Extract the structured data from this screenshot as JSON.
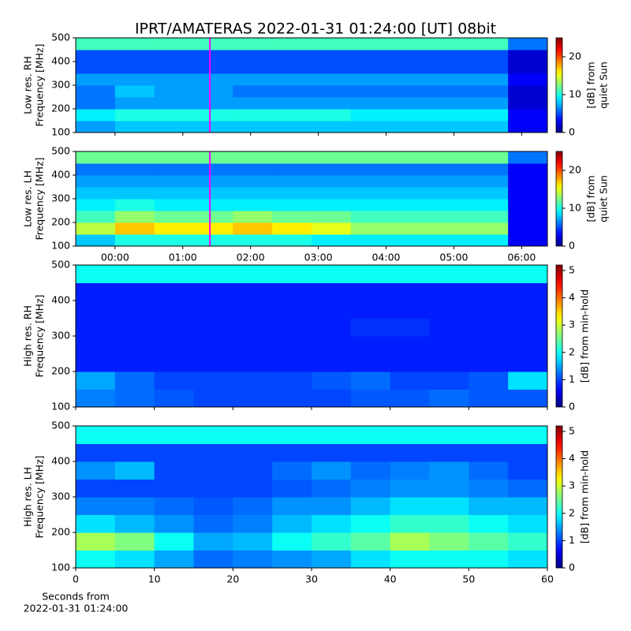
{
  "chart_data": [
    {
      "type": "heatmap",
      "title": "IPRT/AMATERAS 2022-01-31 01:24:00 [UT]   08bit",
      "ylabel": [
        "Low res. RH",
        "Frequency [MHz]"
      ],
      "xlim": [
        -0.58,
        6.38
      ],
      "xticks": [
        {
          "value": 0,
          "label": "00:00"
        },
        {
          "value": 1,
          "label": "01:00"
        },
        {
          "value": 2,
          "label": "02:00"
        },
        {
          "value": 3,
          "label": "03:00"
        },
        {
          "value": 4,
          "label": "04:00"
        },
        {
          "value": 5,
          "label": "05:00"
        },
        {
          "value": 6,
          "label": "06:00"
        }
      ],
      "show_xticklabels": false,
      "ylim": [
        100,
        500
      ],
      "yticks": [
        100,
        200,
        300,
        400,
        500
      ],
      "marker_x": 1.4,
      "marker_color": "#ff00ff",
      "colorbar": {
        "label": [
          "[dB] from",
          "quiet Sun"
        ],
        "lim": [
          0,
          25
        ],
        "ticks": [
          0,
          10,
          20
        ]
      },
      "z": [
        [
          7,
          8,
          8,
          8,
          8,
          8,
          8,
          8,
          8,
          8,
          8,
          3
        ],
        [
          9,
          10,
          10,
          10,
          10,
          10,
          10,
          9,
          9,
          9,
          9,
          3
        ],
        [
          6,
          7,
          7,
          7,
          7,
          7,
          7,
          7,
          7,
          7,
          7,
          2
        ],
        [
          6,
          8,
          7,
          7,
          6,
          6,
          6,
          6,
          6,
          6,
          6,
          2
        ],
        [
          7,
          7,
          7,
          7,
          7,
          7,
          7,
          7,
          7,
          7,
          7,
          3
        ],
        [
          5,
          5,
          5,
          5,
          5,
          5,
          5,
          5,
          5,
          5,
          5,
          2
        ],
        [
          5,
          5,
          5,
          5,
          5,
          5,
          5,
          5,
          5,
          5,
          5,
          2
        ],
        [
          11,
          11,
          11,
          11,
          11,
          11,
          11,
          11,
          11,
          11,
          11,
          6
        ]
      ]
    },
    {
      "type": "heatmap",
      "ylabel": [
        "Low res. LH",
        "Frequency [MHz]"
      ],
      "xlim": [
        -0.58,
        6.38
      ],
      "xticks": [
        {
          "value": 0,
          "label": "00:00"
        },
        {
          "value": 1,
          "label": "01:00"
        },
        {
          "value": 2,
          "label": "02:00"
        },
        {
          "value": 3,
          "label": "03:00"
        },
        {
          "value": 4,
          "label": "04:00"
        },
        {
          "value": 5,
          "label": "05:00"
        },
        {
          "value": 6,
          "label": "06:00"
        }
      ],
      "show_xticklabels": true,
      "ylim": [
        100,
        500
      ],
      "yticks": [
        100,
        200,
        300,
        400,
        500
      ],
      "marker_x": 1.4,
      "marker_color": "#ff00ff",
      "colorbar": {
        "label": [
          "[dB] from",
          "quiet Sun"
        ],
        "lim": [
          0,
          25
        ],
        "ticks": [
          0,
          10,
          20
        ]
      },
      "z": [
        [
          8,
          10,
          10,
          10,
          10,
          10,
          9,
          9,
          9,
          9,
          9,
          3
        ],
        [
          14,
          17,
          16,
          16,
          17,
          16,
          15,
          13,
          13,
          13,
          13,
          3
        ],
        [
          11,
          13,
          12,
          12,
          13,
          12,
          12,
          11,
          11,
          11,
          11,
          3
        ],
        [
          9,
          10,
          9,
          9,
          9,
          9,
          9,
          9,
          9,
          9,
          9,
          3
        ],
        [
          8,
          8,
          8,
          8,
          8,
          8,
          8,
          8,
          8,
          8,
          8,
          3
        ],
        [
          7,
          7,
          7,
          7,
          7,
          7,
          7,
          7,
          7,
          7,
          7,
          3
        ],
        [
          6,
          6,
          6,
          6,
          6,
          6,
          6,
          6,
          6,
          6,
          6,
          3
        ],
        [
          12,
          12,
          12,
          12,
          12,
          12,
          12,
          12,
          12,
          12,
          12,
          6
        ]
      ]
    },
    {
      "type": "heatmap",
      "ylabel": [
        "High res. RH",
        "Frequency [MHz]"
      ],
      "xlim": [
        0,
        60
      ],
      "xticks": [
        0,
        10,
        20,
        30,
        40,
        50,
        60
      ],
      "show_xticklabels": false,
      "ylim": [
        100,
        500
      ],
      "yticks": [
        100,
        200,
        300,
        400,
        500
      ],
      "colorbar": {
        "label": [
          "[dB] from min-hold"
        ],
        "lim": [
          0,
          5.2
        ],
        "ticks": [
          0,
          1,
          2,
          3,
          4,
          5
        ]
      },
      "z": [
        [
          1.3,
          1.2,
          1.1,
          1,
          1,
          1,
          1,
          1.1,
          1.1,
          1.2,
          1.1,
          1.1
        ],
        [
          1.5,
          1.2,
          1,
          1,
          1,
          1,
          1.1,
          1.2,
          1,
          1,
          1.1,
          1.8
        ],
        [
          0.8,
          0.8,
          0.8,
          0.8,
          0.8,
          0.8,
          0.8,
          0.8,
          0.8,
          0.8,
          0.8,
          0.8
        ],
        [
          0.8,
          0.8,
          0.8,
          0.8,
          0.8,
          0.8,
          0.8,
          0.8,
          0.8,
          0.8,
          0.8,
          0.8
        ],
        [
          0.8,
          0.8,
          0.8,
          0.8,
          0.8,
          0.8,
          0.8,
          0.9,
          0.9,
          0.8,
          0.8,
          0.8
        ],
        [
          0.8,
          0.8,
          0.8,
          0.8,
          0.8,
          0.8,
          0.8,
          0.8,
          0.8,
          0.8,
          0.8,
          0.8
        ],
        [
          0.8,
          0.8,
          0.8,
          0.8,
          0.8,
          0.8,
          0.8,
          0.8,
          0.8,
          0.8,
          0.8,
          0.8
        ],
        [
          2,
          2,
          2,
          2,
          2,
          2,
          2,
          2,
          2,
          2,
          2,
          2
        ]
      ]
    },
    {
      "type": "heatmap",
      "ylabel": [
        "High res. LH",
        "Frequency [MHz]"
      ],
      "xlabel": [
        "Seconds from",
        "2022-01-31 01:24:00"
      ],
      "xlim": [
        0,
        60
      ],
      "xticks": [
        0,
        10,
        20,
        30,
        40,
        50,
        60
      ],
      "show_xticklabels": true,
      "ylim": [
        100,
        500
      ],
      "yticks": [
        100,
        200,
        300,
        400,
        500
      ],
      "colorbar": {
        "label": [
          "[dB] from min-hold"
        ],
        "lim": [
          0,
          5.2
        ],
        "ticks": [
          0,
          1,
          2,
          3,
          4,
          5
        ]
      },
      "z": [
        [
          2,
          1.8,
          1.5,
          1.2,
          1.3,
          1.4,
          1.5,
          1.8,
          2,
          2,
          2,
          1.8
        ],
        [
          2.8,
          2.6,
          2,
          1.5,
          1.6,
          2,
          2.2,
          2.4,
          2.8,
          2.6,
          2.4,
          2.2
        ],
        [
          1.8,
          1.6,
          1.4,
          1.2,
          1.3,
          1.6,
          1.8,
          2,
          2.2,
          2.2,
          2,
          1.8
        ],
        [
          1.3,
          1.3,
          1.2,
          1.1,
          1.2,
          1.4,
          1.4,
          1.6,
          1.8,
          1.8,
          1.6,
          1.6
        ],
        [
          1,
          1,
          1,
          1,
          1,
          1.1,
          1.2,
          1.3,
          1.4,
          1.4,
          1.3,
          1.2
        ],
        [
          1.4,
          1.6,
          1,
          1,
          1,
          1.2,
          1.4,
          1.2,
          1.3,
          1.4,
          1.2,
          1
        ],
        [
          1,
          1,
          1,
          1,
          1,
          1,
          1,
          1,
          1,
          1,
          1,
          1
        ],
        [
          2,
          2,
          2,
          2,
          2,
          2,
          2,
          2,
          2,
          2,
          2,
          2
        ]
      ]
    }
  ]
}
